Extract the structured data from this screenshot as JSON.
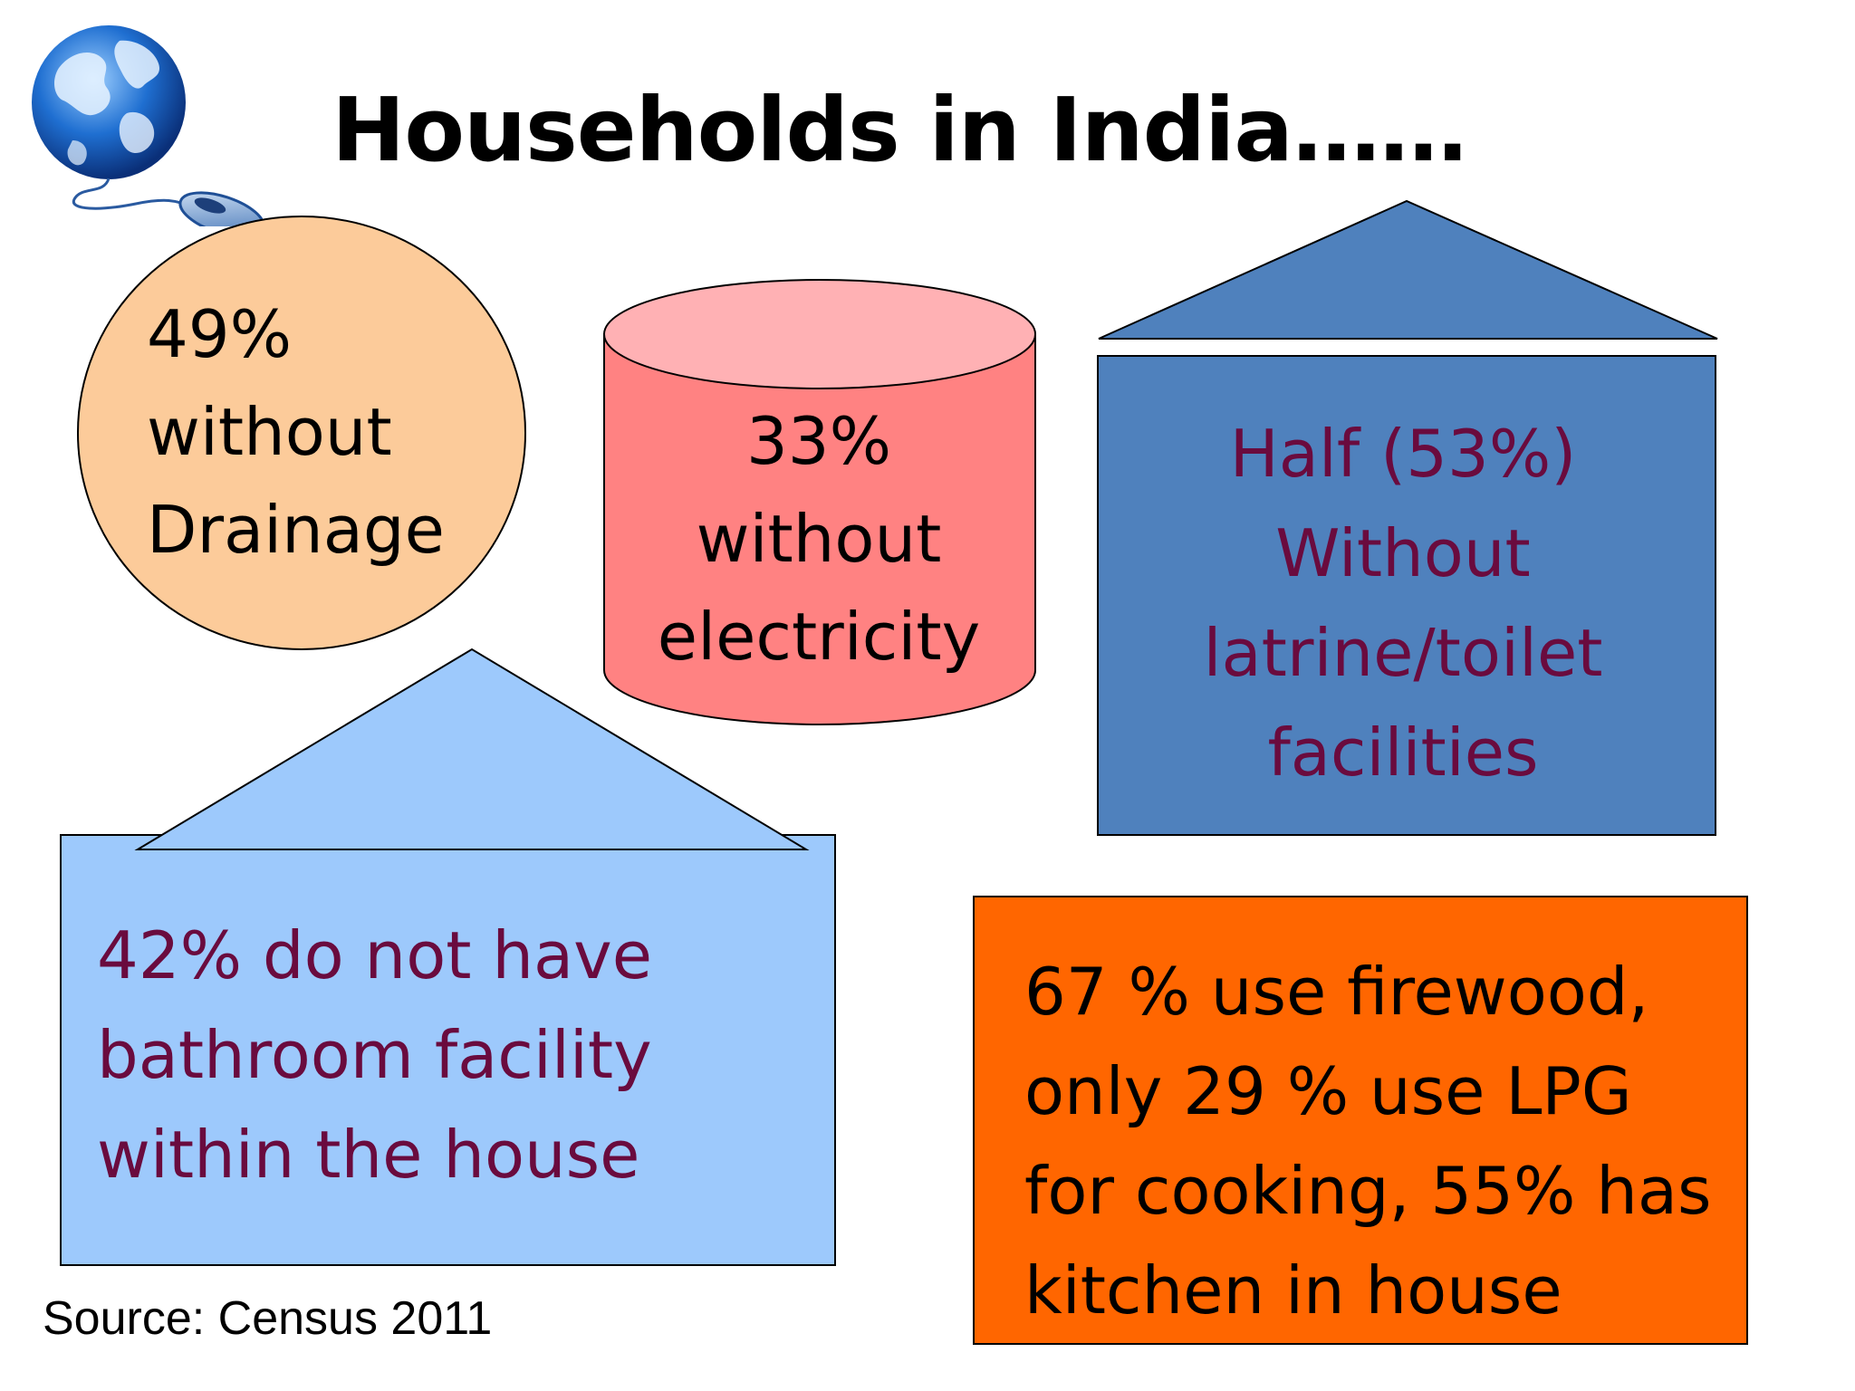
{
  "slide": {
    "title": "Households in India……",
    "source": "Source: Census 2011"
  },
  "stats": {
    "drainage": {
      "lines": [
        "49%",
        "without",
        "Drainage"
      ],
      "color": "#fccb9a"
    },
    "electricity": {
      "lines": [
        "33%",
        "without",
        "electricity"
      ],
      "color": "#ff8282"
    },
    "toilet": {
      "lines": [
        "Half (53%)",
        "Without",
        "latrine/toilet",
        "facilities"
      ],
      "color": "#4f81bd"
    },
    "bathroom": {
      "lines": [
        "42% do not have",
        "bathroom facility",
        "within the house"
      ],
      "color": "#9dc9fc"
    },
    "cooking": {
      "lines": [
        "67 % use firewood,",
        "only 29 % use LPG",
        "for cooking, 55% has",
        "kitchen in house"
      ],
      "color": "#ff6600"
    }
  },
  "icons": {
    "logo": "globe-with-computer-mouse-icon"
  }
}
